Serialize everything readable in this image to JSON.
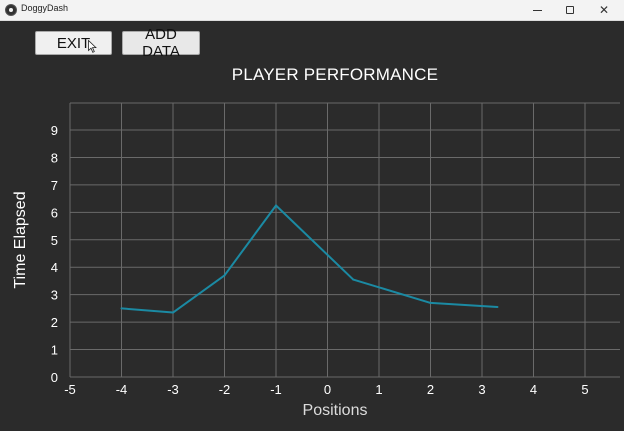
{
  "window": {
    "title": "DoggyDash",
    "icon": "dog-app-icon",
    "controls": {
      "minimize": "minimize-icon",
      "maximize": "maximize-icon",
      "close": "close-icon",
      "close_glyph": "✕"
    }
  },
  "toolbar": {
    "exit_label": "EXIT",
    "add_data_label": "ADD DATA"
  },
  "chart_data": {
    "type": "line",
    "title": "PLAYER PERFORMANCE",
    "xlabel": "Positions",
    "ylabel": "Time Elapsed",
    "xlim": [
      -5,
      5
    ],
    "ylim": [
      0,
      9
    ],
    "xticks": [
      -5,
      -4,
      -3,
      -2,
      -1,
      0,
      1,
      2,
      3,
      4,
      5
    ],
    "yticks": [
      0,
      1,
      2,
      3,
      4,
      5,
      6,
      7,
      8,
      9
    ],
    "grid": true,
    "series": [
      {
        "color": "#1b8aa3",
        "x": [
          -4,
          -3,
          -2,
          -1,
          0.5,
          2,
          3.3
        ],
        "y": [
          2.5,
          2.35,
          3.7,
          6.25,
          3.55,
          2.7,
          2.55
        ]
      }
    ],
    "colors": {
      "background": "#2b2b2b",
      "grid": "#6a6a6a",
      "tick_text": "#ffffff",
      "line": "#1b8aa3"
    }
  }
}
